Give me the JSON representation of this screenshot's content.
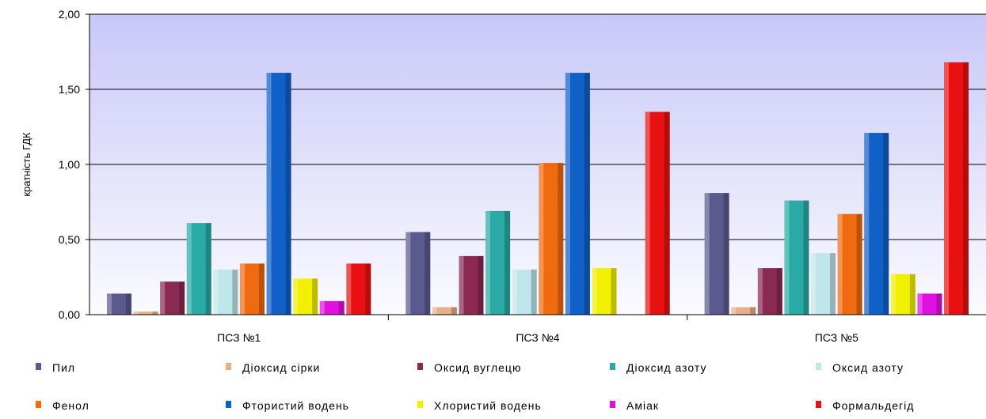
{
  "chart_data": {
    "type": "bar",
    "title": "",
    "ylabel": "кратність ГДК",
    "xlabel": "",
    "ylim": [
      0,
      2
    ],
    "yticks": [
      "0,00",
      "0,50",
      "1,00",
      "1,50",
      "2,00"
    ],
    "grid": "horizontal",
    "legend_position": "bottom",
    "categories": [
      "ПСЗ №1",
      "ПСЗ №4",
      "ПСЗ №5"
    ],
    "series": [
      {
        "name": "Пил",
        "color": "#5a5a8e",
        "values": [
          0.14,
          0.55,
          0.81
        ]
      },
      {
        "name": "Діоксид сірки",
        "color": "#e8b08a",
        "values": [
          0.02,
          0.05,
          0.05
        ]
      },
      {
        "name": "Оксид вуглецю",
        "color": "#8a2a52",
        "values": [
          0.22,
          0.39,
          0.31
        ]
      },
      {
        "name": "Діоксид азоту",
        "color": "#2aaaa6",
        "values": [
          0.61,
          0.69,
          0.76
        ]
      },
      {
        "name": "Оксид азоту",
        "color": "#bfe6ea",
        "values": [
          0.3,
          0.3,
          0.41
        ]
      },
      {
        "name": "Фенол",
        "color": "#f06a10",
        "values": [
          0.34,
          1.01,
          0.67
        ]
      },
      {
        "name": "Фтористий водень",
        "color": "#1060c8",
        "values": [
          1.61,
          1.61,
          1.21
        ]
      },
      {
        "name": "Хлористий водень",
        "color": "#f0f000",
        "values": [
          0.24,
          0.31,
          0.27
        ]
      },
      {
        "name": "Аміак",
        "color": "#e010e0",
        "values": [
          0.09,
          0.0,
          0.14
        ]
      },
      {
        "name": "Формальдегід",
        "color": "#e81010",
        "values": [
          0.34,
          1.35,
          1.68
        ]
      }
    ]
  },
  "colors": {
    "plot_background": "#ccccff",
    "grid": "#000000"
  }
}
